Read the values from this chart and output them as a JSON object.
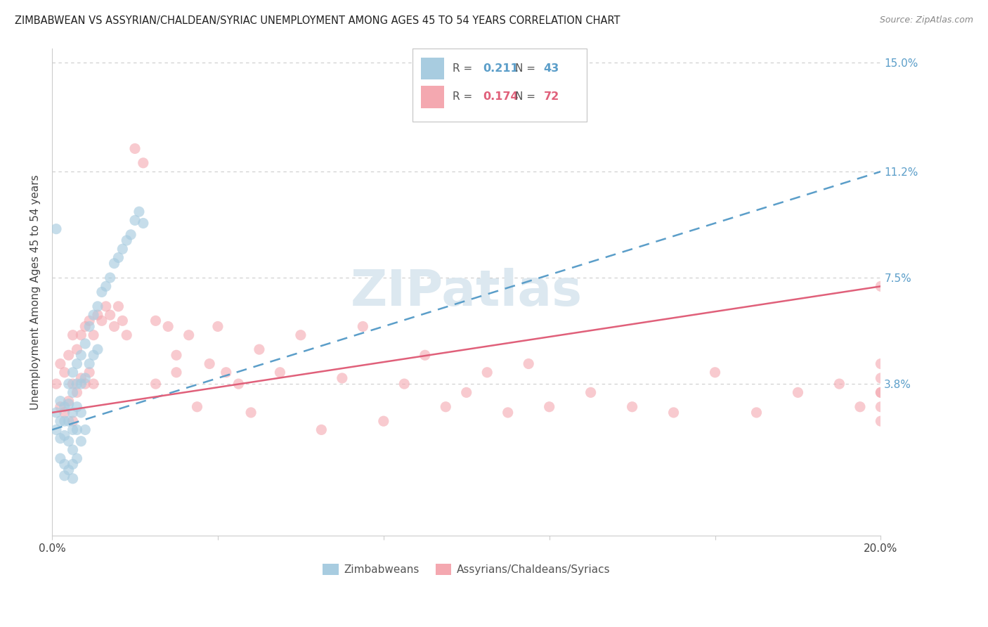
{
  "title": "ZIMBABWEAN VS ASSYRIAN/CHALDEAN/SYRIAC UNEMPLOYMENT AMONG AGES 45 TO 54 YEARS CORRELATION CHART",
  "source": "Source: ZipAtlas.com",
  "ylabel": "Unemployment Among Ages 45 to 54 years",
  "xlim": [
    0.0,
    0.2
  ],
  "ylim": [
    -0.015,
    0.155
  ],
  "ytick_values": [
    0.038,
    0.075,
    0.112,
    0.15
  ],
  "xtick_values": [
    0.0,
    0.04,
    0.08,
    0.12,
    0.16,
    0.2
  ],
  "xtick_labels": [
    "0.0%",
    "",
    "",
    "",
    "",
    "20.0%"
  ],
  "right_ytick_labels": [
    "3.8%",
    "7.5%",
    "11.2%",
    "15.0%"
  ],
  "legend_R1": "0.211",
  "legend_N1": "43",
  "legend_R2": "0.174",
  "legend_N2": "72",
  "color_blue": "#a8cce0",
  "color_pink": "#f4a8b0",
  "color_blue_line": "#5b9ec9",
  "color_pink_line": "#e0607a",
  "color_blue_text": "#5b9ec9",
  "color_pink_text": "#e0607a",
  "color_blue_n": "#e05878",
  "watermark": "ZIPatlas",
  "watermark_color": "#dce8f0",
  "zim_x": [
    0.001,
    0.001,
    0.002,
    0.002,
    0.002,
    0.003,
    0.003,
    0.003,
    0.004,
    0.004,
    0.004,
    0.004,
    0.005,
    0.005,
    0.005,
    0.005,
    0.005,
    0.006,
    0.006,
    0.006,
    0.006,
    0.007,
    0.007,
    0.007,
    0.008,
    0.008,
    0.009,
    0.009,
    0.01,
    0.01,
    0.011,
    0.011,
    0.012,
    0.013,
    0.014,
    0.015,
    0.016,
    0.017,
    0.018,
    0.019,
    0.02,
    0.021,
    0.022
  ],
  "zim_y": [
    0.028,
    0.022,
    0.032,
    0.025,
    0.019,
    0.03,
    0.025,
    0.02,
    0.038,
    0.031,
    0.025,
    0.018,
    0.042,
    0.035,
    0.028,
    0.022,
    0.015,
    0.045,
    0.038,
    0.03,
    0.022,
    0.048,
    0.038,
    0.028,
    0.052,
    0.04,
    0.058,
    0.045,
    0.062,
    0.048,
    0.065,
    0.05,
    0.07,
    0.072,
    0.075,
    0.08,
    0.082,
    0.085,
    0.088,
    0.09,
    0.095,
    0.098,
    0.094
  ],
  "zim_x2": [
    0.001,
    0.002,
    0.003,
    0.003,
    0.004,
    0.005,
    0.005,
    0.006,
    0.007,
    0.008
  ],
  "zim_y2": [
    0.092,
    0.012,
    0.01,
    0.006,
    0.008,
    0.01,
    0.005,
    0.012,
    0.018,
    0.022
  ],
  "acs_x": [
    0.001,
    0.002,
    0.002,
    0.003,
    0.003,
    0.004,
    0.004,
    0.005,
    0.005,
    0.005,
    0.006,
    0.006,
    0.007,
    0.007,
    0.008,
    0.008,
    0.009,
    0.009,
    0.01,
    0.01,
    0.011,
    0.012,
    0.013,
    0.014,
    0.015,
    0.016,
    0.017,
    0.018,
    0.02,
    0.022,
    0.025,
    0.025,
    0.028,
    0.03,
    0.03,
    0.033,
    0.035,
    0.038,
    0.04,
    0.042,
    0.045,
    0.048,
    0.05,
    0.055,
    0.06,
    0.065,
    0.07,
    0.075,
    0.08,
    0.085,
    0.09,
    0.095,
    0.1,
    0.105,
    0.11,
    0.115,
    0.12,
    0.13,
    0.14,
    0.15,
    0.16,
    0.17,
    0.18,
    0.19,
    0.195,
    0.2,
    0.2,
    0.2,
    0.2,
    0.2,
    0.2,
    0.2
  ],
  "acs_y": [
    0.038,
    0.045,
    0.03,
    0.042,
    0.028,
    0.048,
    0.032,
    0.055,
    0.038,
    0.025,
    0.05,
    0.035,
    0.055,
    0.04,
    0.058,
    0.038,
    0.06,
    0.042,
    0.055,
    0.038,
    0.062,
    0.06,
    0.065,
    0.062,
    0.058,
    0.065,
    0.06,
    0.055,
    0.12,
    0.115,
    0.06,
    0.038,
    0.058,
    0.042,
    0.048,
    0.055,
    0.03,
    0.045,
    0.058,
    0.042,
    0.038,
    0.028,
    0.05,
    0.042,
    0.055,
    0.022,
    0.04,
    0.058,
    0.025,
    0.038,
    0.048,
    0.03,
    0.035,
    0.042,
    0.028,
    0.045,
    0.03,
    0.035,
    0.03,
    0.028,
    0.042,
    0.028,
    0.035,
    0.038,
    0.03,
    0.025,
    0.03,
    0.035,
    0.04,
    0.045,
    0.035,
    0.072
  ]
}
